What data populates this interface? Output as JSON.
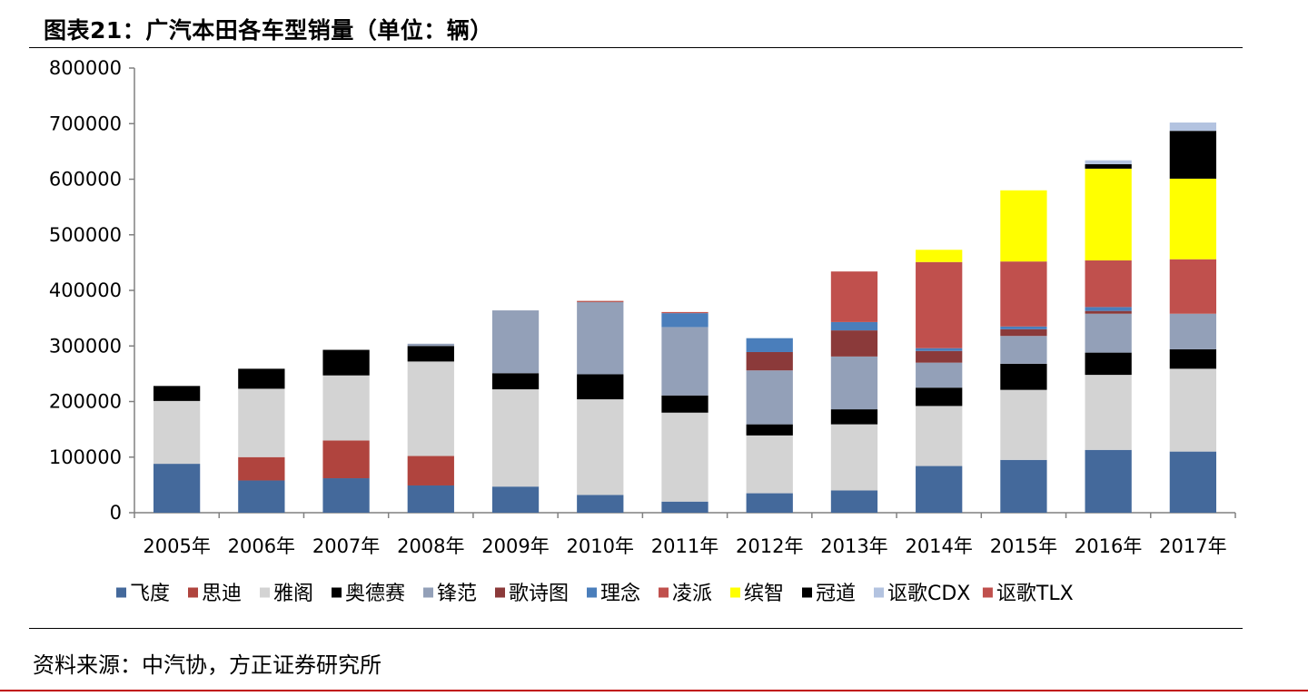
{
  "title": "图表21：广汽本田各车型销量（单位：辆）",
  "source": "资料来源：中汽协，方正证券研究所",
  "chart_data": {
    "type": "bar",
    "stacked": true,
    "categories": [
      "2005年",
      "2006年",
      "2007年",
      "2008年",
      "2009年",
      "2010年",
      "2011年",
      "2012年",
      "2013年",
      "2014年",
      "2015年",
      "2016年",
      "2017年"
    ],
    "ylim": [
      0,
      800000
    ],
    "yticks": [
      "0",
      "100000",
      "200000",
      "300000",
      "400000",
      "500000",
      "600000",
      "700000",
      "800000"
    ],
    "grid": false,
    "legend_position": "bottom",
    "series": [
      {
        "name": "飞度",
        "color": "#44699b",
        "values": [
          88000,
          58000,
          62000,
          49000,
          47000,
          32000,
          20000,
          35000,
          40000,
          84000,
          95000,
          113000,
          110000
        ]
      },
      {
        "name": "思迪",
        "color": "#b0443e",
        "values": [
          0,
          42000,
          68000,
          53000,
          0,
          0,
          0,
          0,
          0,
          0,
          0,
          0,
          0
        ]
      },
      {
        "name": "雅阁",
        "color": "#d3d3d3",
        "values": [
          113000,
          123000,
          117000,
          170000,
          175000,
          172000,
          160000,
          104000,
          119000,
          108000,
          126000,
          135000,
          149000
        ]
      },
      {
        "name": "奥德赛",
        "color": "#000000",
        "values": [
          27000,
          36000,
          46000,
          28000,
          29000,
          45000,
          31000,
          20000,
          27000,
          33000,
          47000,
          40000,
          35000
        ]
      },
      {
        "name": "锋范",
        "color": "#93a0b8",
        "values": [
          0,
          0,
          0,
          0,
          113000,
          130000,
          123000,
          97000,
          95000,
          45000,
          50000,
          70000,
          64000
        ]
      },
      {
        "name": "歌诗图",
        "color": "#8b3a3a",
        "values": [
          0,
          0,
          0,
          0,
          0,
          0,
          0,
          33000,
          47000,
          21000,
          12000,
          5000,
          0
        ]
      },
      {
        "name": "理念",
        "color": "#4a7ebb",
        "values": [
          0,
          0,
          0,
          0,
          0,
          0,
          25000,
          25000,
          15000,
          5000,
          5000,
          7000,
          0
        ]
      },
      {
        "name": "凌派",
        "color": "#c0504d",
        "values": [
          0,
          0,
          0,
          0,
          0,
          0,
          0,
          0,
          91000,
          155000,
          117000,
          84000,
          98000
        ]
      },
      {
        "name": "缤智",
        "color": "#ffff00",
        "values": [
          0,
          0,
          0,
          0,
          0,
          0,
          0,
          0,
          0,
          22000,
          128000,
          165000,
          145000
        ]
      },
      {
        "name": "冠道",
        "color": "#000000",
        "values": [
          0,
          0,
          0,
          0,
          0,
          0,
          0,
          0,
          0,
          0,
          0,
          8000,
          86000
        ]
      },
      {
        "name": "讴歌CDX",
        "color": "#b3c3e0",
        "values": [
          0,
          0,
          0,
          0,
          0,
          0,
          0,
          0,
          0,
          0,
          0,
          7000,
          15000
        ]
      },
      {
        "name": "讴歌TLX",
        "color": "#c0504d",
        "values": [
          0,
          0,
          0,
          0,
          0,
          0,
          0,
          0,
          0,
          0,
          0,
          0,
          0
        ]
      }
    ],
    "other_bits": [
      {
        "category": "2008年",
        "color": "#93a0b8",
        "value": 4000
      },
      {
        "category": "2010年",
        "color": "#b0443e",
        "value": 2000
      },
      {
        "category": "2011年",
        "color": "#c0504d",
        "value": 2000
      }
    ]
  }
}
